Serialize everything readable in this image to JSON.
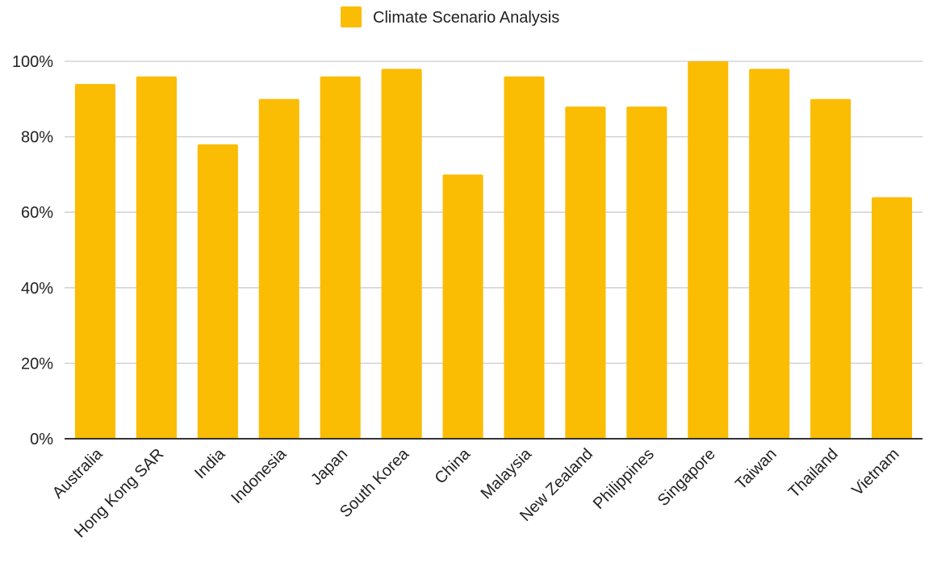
{
  "chart_data": {
    "type": "bar",
    "categories": [
      "Australia",
      "Hong Kong SAR",
      "India",
      "Indonesia",
      "Japan",
      "South Korea",
      "China",
      "Malaysia",
      "New Zealand",
      "Philippines",
      "Singapore",
      "Taiwan",
      "Thailand",
      "Vietnam"
    ],
    "series": [
      {
        "name": "Climate Scenario Analysis",
        "color": "#FBBC04",
        "values": [
          94,
          96,
          78,
          90,
          96,
          98,
          70,
          96,
          88,
          88,
          100,
          98,
          90,
          64
        ]
      }
    ],
    "ylim": [
      0,
      100
    ],
    "yticks": [
      "0%",
      "20%",
      "40%",
      "60%",
      "80%",
      "100%"
    ],
    "ytick_values": [
      0,
      20,
      40,
      60,
      80,
      100
    ],
    "grid": true,
    "legend_position": "top-center",
    "x_label_rotation_deg": -45
  },
  "colors": {
    "bar": "#FBBC04",
    "grid": "#cccccc",
    "axis": "#333333",
    "text": "#222222"
  }
}
